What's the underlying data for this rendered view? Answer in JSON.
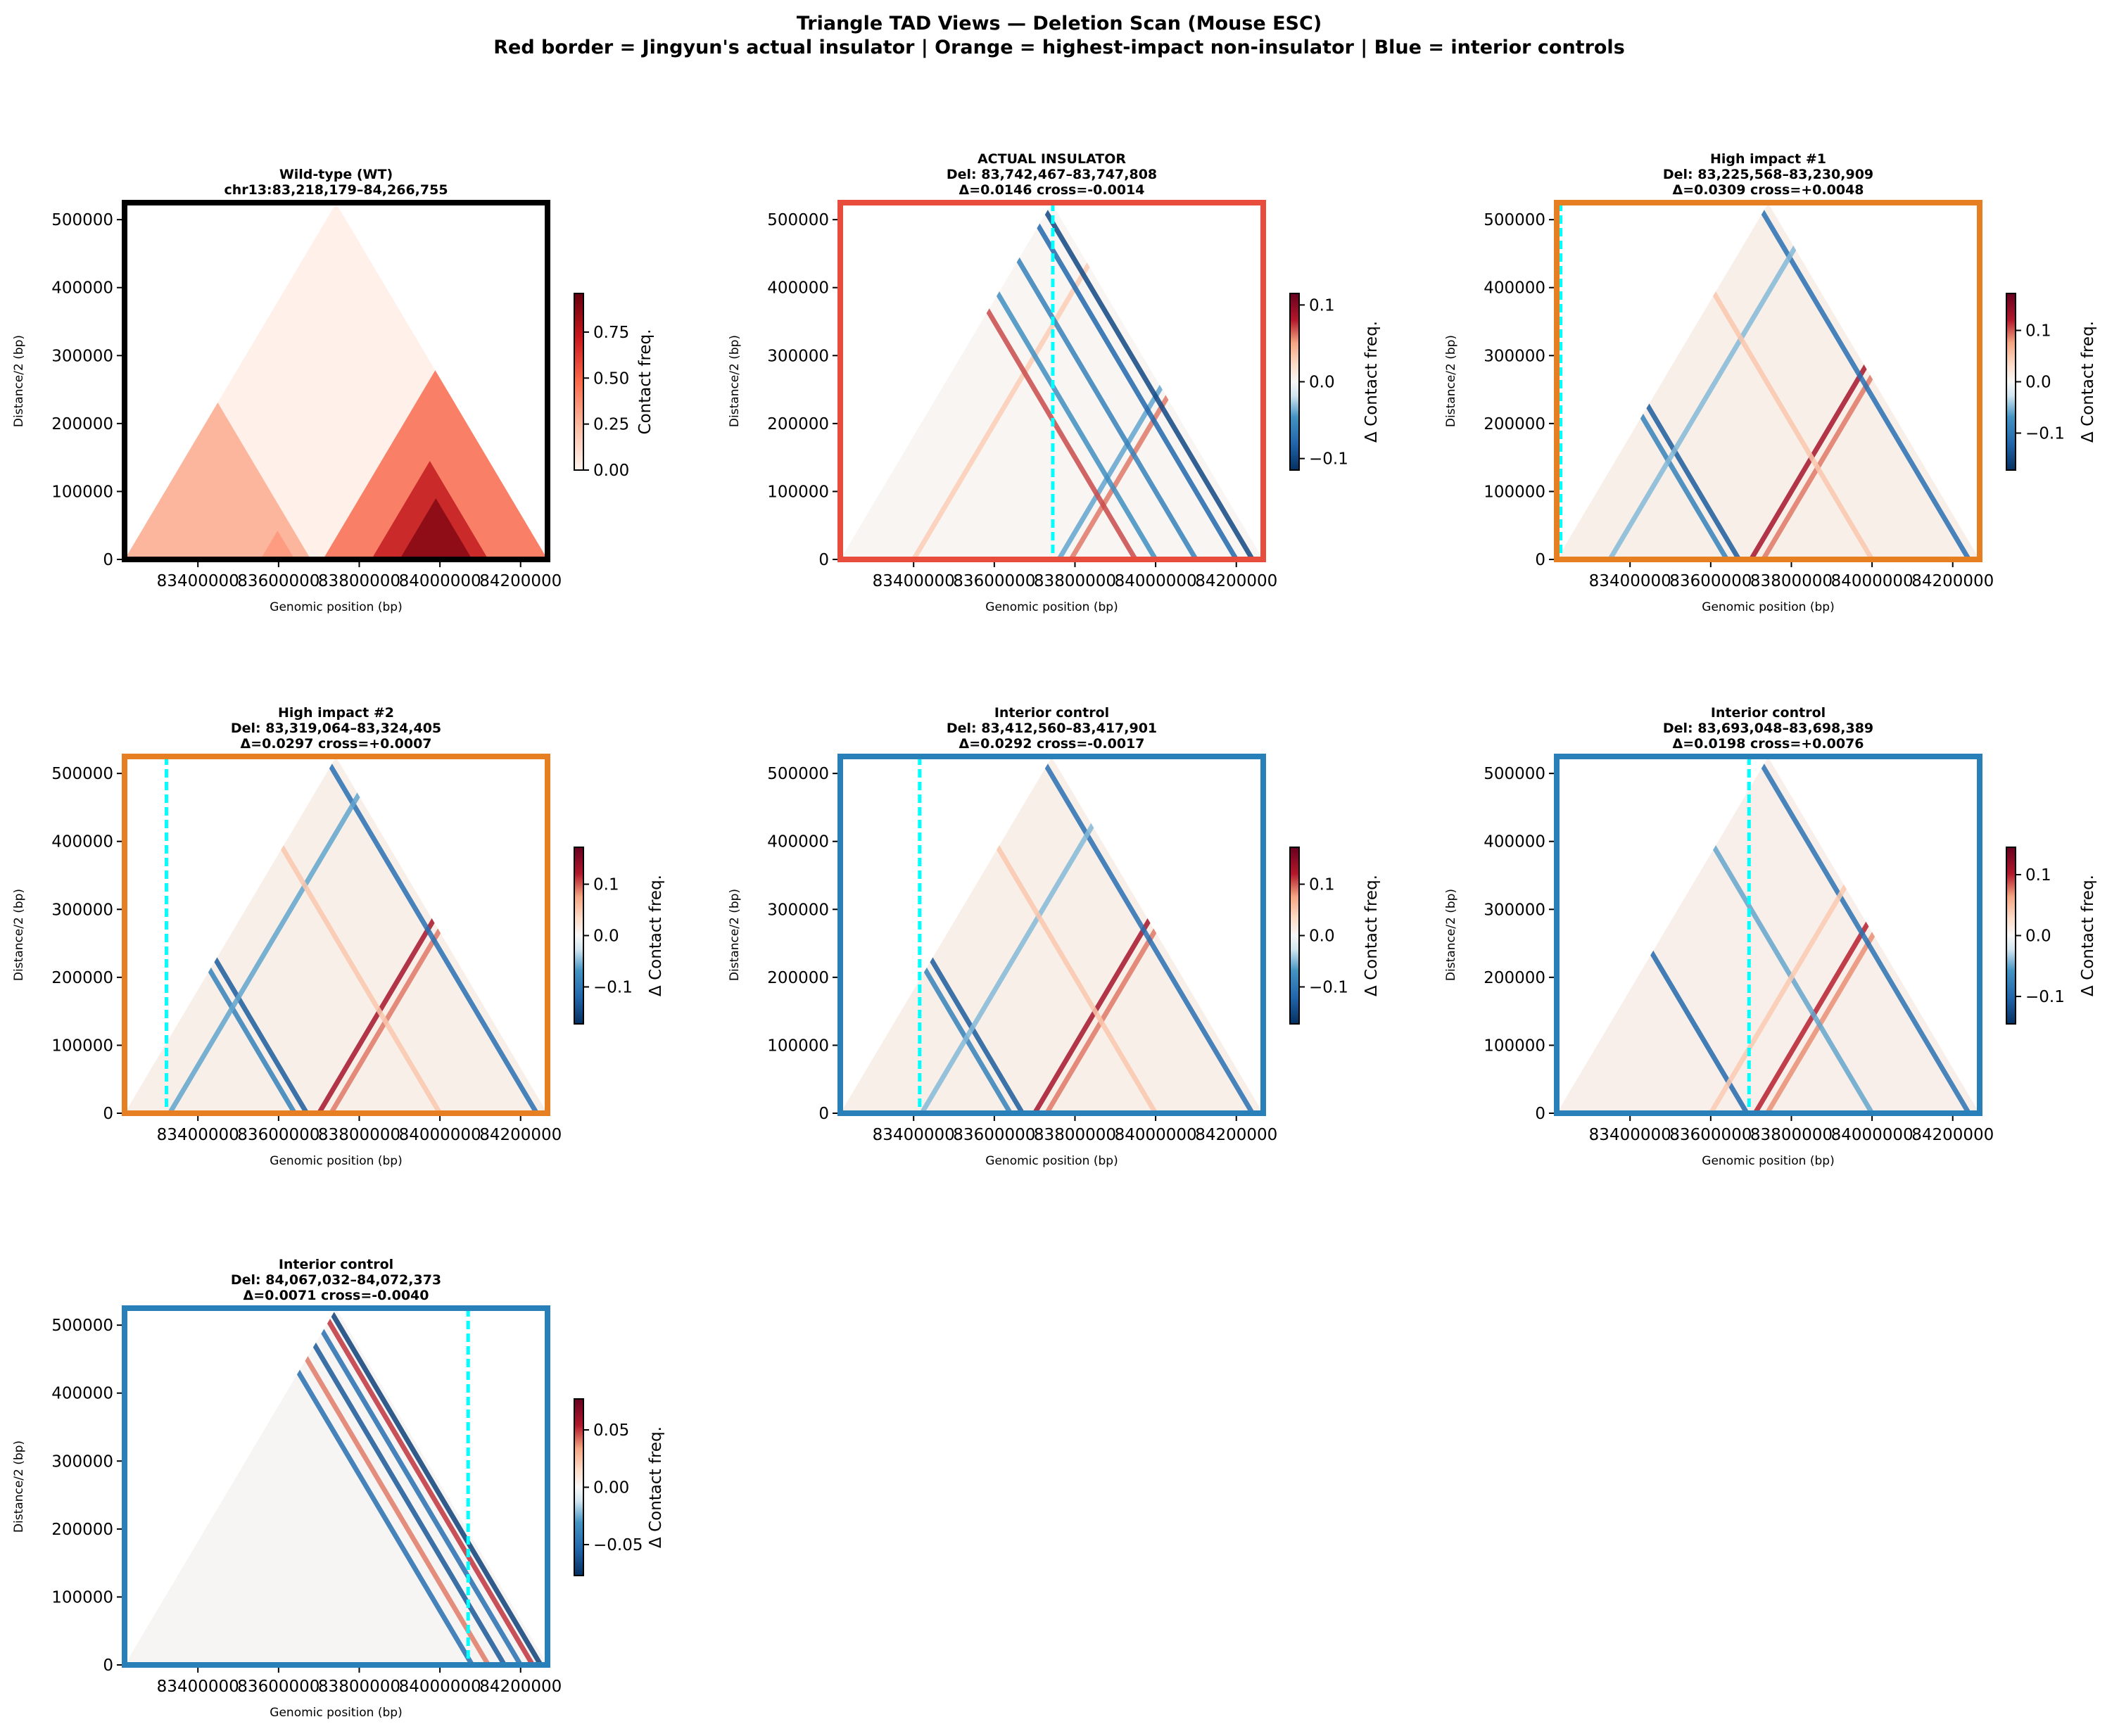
{
  "figure": {
    "title_line1": "Triangle TAD Views — Deletion Scan (Mouse ESC)",
    "title_line2": "Red border = Jingyun's actual insulator  |  Orange = highest-impact non-insulator  |  Blue = interior controls"
  },
  "colors": {
    "red_border": "#e74c3c",
    "orange_border": "#e67e22",
    "blue_border": "#2980b9",
    "black_border": "#000000",
    "deletion_line": "#00ffff"
  },
  "chart_data": [
    {
      "type": "heatmap",
      "title": "Wild-type (WT)",
      "subtitle": "chr13:83,218,179–84,266,755",
      "xlabel": "Genomic position (bp)",
      "ylabel": "Distance/2 (bp)",
      "xlim": [
        83218179,
        84266755
      ],
      "ylim": [
        0,
        525000
      ],
      "xticks": [
        "83400000",
        "83600000",
        "83800000",
        "84000000",
        "84200000"
      ],
      "xtick_values": [
        83400000,
        83600000,
        83800000,
        84000000,
        84200000
      ],
      "yticks": [
        "0",
        "100000",
        "200000",
        "300000",
        "400000",
        "500000"
      ],
      "ytick_values": [
        0,
        100000,
        200000,
        300000,
        400000,
        500000
      ],
      "cmap": "Reds",
      "vmin": 0,
      "vmax": 0.96,
      "cbar_label": "Contact freq.",
      "cbar_ticks": [
        "0.00",
        "0.25",
        "0.50",
        "0.75"
      ],
      "cbar_tick_values": [
        0,
        0.25,
        0.5,
        0.75
      ],
      "border": "black",
      "deletion": null,
      "background_value": 0.02,
      "domains": [
        {
          "start": 83218179,
          "end": 83680000,
          "value": 0.3
        },
        {
          "start": 83555000,
          "end": 83640000,
          "value": 0.35
        },
        {
          "start": 83710000,
          "end": 84290000,
          "value": 0.5
        },
        {
          "start": 83830000,
          "end": 84120000,
          "value": 0.75
        },
        {
          "start": 83900000,
          "end": 84080000,
          "value": 0.9
        }
      ],
      "stripes": []
    },
    {
      "type": "heatmap",
      "title": "ACTUAL INSULATOR",
      "subtitle": "Del: 83,742,467–83,747,808",
      "stats": "Δ=0.0146  cross=-0.0014",
      "xlabel": "Genomic position (bp)",
      "ylabel": "Distance/2 (bp)",
      "xlim": [
        83218179,
        84266755
      ],
      "ylim": [
        0,
        525000
      ],
      "xticks": [
        "83400000",
        "83600000",
        "83800000",
        "84000000",
        "84200000"
      ],
      "xtick_values": [
        83400000,
        83600000,
        83800000,
        84000000,
        84200000
      ],
      "yticks": [
        "0",
        "100000",
        "200000",
        "300000",
        "400000",
        "500000"
      ],
      "ytick_values": [
        0,
        100000,
        200000,
        300000,
        400000,
        500000
      ],
      "cmap": "RdBu_r",
      "vmin": -0.115,
      "vmax": 0.115,
      "cbar_label": "Δ Contact freq.",
      "cbar_ticks": [
        "−0.1",
        "0.0",
        "0.1"
      ],
      "cbar_tick_values": [
        -0.1,
        0,
        0.1
      ],
      "border": "red",
      "deletion": 83745000,
      "background_value": 0.002,
      "domains": [],
      "stripes": [
        {
          "pos": 83400000,
          "dir": "right",
          "value": 0.03
        },
        {
          "pos": 83760000,
          "dir": "right",
          "value": -0.04
        },
        {
          "pos": 83790000,
          "dir": "right",
          "value": 0.06
        },
        {
          "pos": 83950000,
          "dir": "left",
          "value": 0.07
        },
        {
          "pos": 84000000,
          "dir": "left",
          "value": -0.05
        },
        {
          "pos": 84100000,
          "dir": "left",
          "value": -0.06
        },
        {
          "pos": 84200000,
          "dir": "left",
          "value": -0.08
        },
        {
          "pos": 84240000,
          "dir": "left",
          "value": -0.1
        }
      ]
    },
    {
      "type": "heatmap",
      "title": "High impact #1",
      "subtitle": "Del: 83,225,568–83,230,909",
      "stats": "Δ=0.0309  cross=+0.0048",
      "xlabel": "Genomic position (bp)",
      "ylabel": "Distance/2 (bp)",
      "xlim": [
        83218179,
        84266755
      ],
      "ylim": [
        0,
        525000
      ],
      "xticks": [
        "83400000",
        "83600000",
        "83800000",
        "84000000",
        "84200000"
      ],
      "xtick_values": [
        83400000,
        83600000,
        83800000,
        84000000,
        84200000
      ],
      "yticks": [
        "0",
        "100000",
        "200000",
        "300000",
        "400000",
        "500000"
      ],
      "ytick_values": [
        0,
        100000,
        200000,
        300000,
        400000,
        500000
      ],
      "cmap": "RdBu_r",
      "vmin": -0.172,
      "vmax": 0.172,
      "cbar_label": "Δ Contact freq.",
      "cbar_ticks": [
        "−0.1",
        "0.0",
        "0.1"
      ],
      "cbar_tick_values": [
        -0.1,
        0,
        0.1
      ],
      "border": "orange",
      "deletion": 83228000,
      "background_value": 0.01,
      "domains": [],
      "stripes": [
        {
          "pos": 83670000,
          "dir": "left",
          "value": -0.13
        },
        {
          "pos": 83640000,
          "dir": "left",
          "value": -0.09
        },
        {
          "pos": 83700000,
          "dir": "right",
          "value": 0.13
        },
        {
          "pos": 83730000,
          "dir": "right",
          "value": 0.09
        },
        {
          "pos": 84240000,
          "dir": "left",
          "value": -0.11
        },
        {
          "pos": 83350000,
          "dir": "right",
          "value": -0.05
        },
        {
          "pos": 84000000,
          "dir": "left",
          "value": 0.05
        }
      ]
    },
    {
      "type": "heatmap",
      "title": "High impact #2",
      "subtitle": "Del: 83,319,064–83,324,405",
      "stats": "Δ=0.0297  cross=+0.0007",
      "xlabel": "Genomic position (bp)",
      "ylabel": "Distance/2 (bp)",
      "xlim": [
        83218179,
        84266755
      ],
      "ylim": [
        0,
        525000
      ],
      "xticks": [
        "83400000",
        "83600000",
        "83800000",
        "84000000",
        "84200000"
      ],
      "xtick_values": [
        83400000,
        83600000,
        83800000,
        84000000,
        84200000
      ],
      "yticks": [
        "0",
        "100000",
        "200000",
        "300000",
        "400000",
        "500000"
      ],
      "ytick_values": [
        0,
        100000,
        200000,
        300000,
        400000,
        500000
      ],
      "cmap": "RdBu_r",
      "vmin": -0.172,
      "vmax": 0.172,
      "cbar_label": "Δ Contact freq.",
      "cbar_ticks": [
        "−0.1",
        "0.0",
        "0.1"
      ],
      "cbar_tick_values": [
        -0.1,
        0,
        0.1
      ],
      "border": "orange",
      "deletion": 83322000,
      "background_value": 0.01,
      "domains": [],
      "stripes": [
        {
          "pos": 83670000,
          "dir": "left",
          "value": -0.13
        },
        {
          "pos": 83640000,
          "dir": "left",
          "value": -0.09
        },
        {
          "pos": 83700000,
          "dir": "right",
          "value": 0.13
        },
        {
          "pos": 83730000,
          "dir": "right",
          "value": 0.09
        },
        {
          "pos": 84240000,
          "dir": "left",
          "value": -0.11
        },
        {
          "pos": 83330000,
          "dir": "right",
          "value": -0.06
        },
        {
          "pos": 84000000,
          "dir": "left",
          "value": 0.05
        }
      ]
    },
    {
      "type": "heatmap",
      "title": "Interior control",
      "subtitle": "Del: 83,412,560–83,417,901",
      "stats": "Δ=0.0292  cross=-0.0017",
      "xlabel": "Genomic position (bp)",
      "ylabel": "Distance/2 (bp)",
      "xlim": [
        83218179,
        84266755
      ],
      "ylim": [
        0,
        525000
      ],
      "xticks": [
        "83400000",
        "83600000",
        "83800000",
        "84000000",
        "84200000"
      ],
      "xtick_values": [
        83400000,
        83600000,
        83800000,
        84000000,
        84200000
      ],
      "yticks": [
        "0",
        "100000",
        "200000",
        "300000",
        "400000",
        "500000"
      ],
      "ytick_values": [
        0,
        100000,
        200000,
        300000,
        400000,
        500000
      ],
      "cmap": "RdBu_r",
      "vmin": -0.172,
      "vmax": 0.172,
      "cbar_label": "Δ Contact freq.",
      "cbar_ticks": [
        "−0.1",
        "0.0",
        "0.1"
      ],
      "cbar_tick_values": [
        -0.1,
        0,
        0.1
      ],
      "border": "blue",
      "deletion": 83415000,
      "background_value": 0.01,
      "domains": [],
      "stripes": [
        {
          "pos": 83670000,
          "dir": "left",
          "value": -0.13
        },
        {
          "pos": 83640000,
          "dir": "left",
          "value": -0.09
        },
        {
          "pos": 83700000,
          "dir": "right",
          "value": 0.13
        },
        {
          "pos": 83730000,
          "dir": "right",
          "value": 0.09
        },
        {
          "pos": 84240000,
          "dir": "left",
          "value": -0.11
        },
        {
          "pos": 83420000,
          "dir": "right",
          "value": -0.05
        },
        {
          "pos": 84000000,
          "dir": "left",
          "value": 0.05
        }
      ]
    },
    {
      "type": "heatmap",
      "title": "Interior control",
      "subtitle": "Del: 83,693,048–83,698,389",
      "stats": "Δ=0.0198  cross=+0.0076",
      "xlabel": "Genomic position (bp)",
      "ylabel": "Distance/2 (bp)",
      "xlim": [
        83218179,
        84266755
      ],
      "ylim": [
        0,
        525000
      ],
      "xticks": [
        "83400000",
        "83600000",
        "83800000",
        "84000000",
        "84200000"
      ],
      "xtick_values": [
        83400000,
        83600000,
        83800000,
        84000000,
        84200000
      ],
      "yticks": [
        "0",
        "100000",
        "200000",
        "300000",
        "400000",
        "500000"
      ],
      "ytick_values": [
        0,
        100000,
        200000,
        300000,
        400000,
        500000
      ],
      "cmap": "RdBu_r",
      "vmin": -0.145,
      "vmax": 0.145,
      "cbar_label": "Δ Contact freq.",
      "cbar_ticks": [
        "−0.1",
        "0.0",
        "0.1"
      ],
      "cbar_tick_values": [
        -0.1,
        0,
        0.1
      ],
      "border": "blue",
      "deletion": 83695000,
      "background_value": 0.008,
      "domains": [],
      "stripes": [
        {
          "pos": 83690000,
          "dir": "left",
          "value": -0.1
        },
        {
          "pos": 83710000,
          "dir": "right",
          "value": 0.1
        },
        {
          "pos": 83740000,
          "dir": "right",
          "value": 0.07
        },
        {
          "pos": 84240000,
          "dir": "left",
          "value": -0.09
        },
        {
          "pos": 84000000,
          "dir": "left",
          "value": -0.05
        },
        {
          "pos": 83600000,
          "dir": "right",
          "value": 0.04
        }
      ]
    },
    {
      "type": "heatmap",
      "title": "Interior control",
      "subtitle": "Del: 84,067,032–84,072,373",
      "stats": "Δ=0.0071  cross=-0.0040",
      "xlabel": "Genomic position (bp)",
      "ylabel": "Distance/2 (bp)",
      "xlim": [
        83218179,
        84266755
      ],
      "ylim": [
        0,
        525000
      ],
      "xticks": [
        "83400000",
        "83600000",
        "83800000",
        "84000000",
        "84200000"
      ],
      "xtick_values": [
        83400000,
        83600000,
        83800000,
        84000000,
        84200000
      ],
      "yticks": [
        "0",
        "100000",
        "200000",
        "300000",
        "400000",
        "500000"
      ],
      "ytick_values": [
        0,
        100000,
        200000,
        300000,
        400000,
        500000
      ],
      "cmap": "RdBu_r",
      "vmin": -0.077,
      "vmax": 0.077,
      "cbar_label": "Δ Contact freq.",
      "cbar_ticks": [
        "−0.05",
        "0.00",
        "0.05"
      ],
      "cbar_tick_values": [
        -0.05,
        0,
        0.05
      ],
      "border": "blue",
      "deletion": 84070000,
      "background_value": 0.001,
      "domains": [],
      "stripes": [
        {
          "pos": 84080000,
          "dir": "left",
          "value": -0.05
        },
        {
          "pos": 84120000,
          "dir": "left",
          "value": 0.04
        },
        {
          "pos": 84160000,
          "dir": "left",
          "value": -0.06
        },
        {
          "pos": 84200000,
          "dir": "left",
          "value": -0.05
        },
        {
          "pos": 84230000,
          "dir": "left",
          "value": 0.05
        },
        {
          "pos": 84250000,
          "dir": "left",
          "value": -0.07
        }
      ]
    }
  ]
}
